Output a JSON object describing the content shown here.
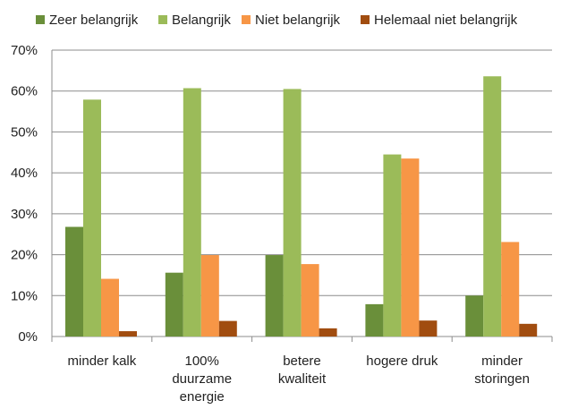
{
  "chart_data": {
    "type": "bar",
    "title": "",
    "xlabel": "",
    "ylabel": "",
    "ylim": [
      0,
      70
    ],
    "yticks": [
      "0%",
      "10%",
      "20%",
      "30%",
      "40%",
      "50%",
      "60%",
      "70%"
    ],
    "grid": true,
    "legend_position": "top",
    "categories": [
      [
        "minder kalk"
      ],
      [
        "100%",
        "duurzame",
        "energie"
      ],
      [
        "betere",
        "kwaliteit"
      ],
      [
        "hogere druk"
      ],
      [
        "minder",
        "storingen"
      ]
    ],
    "series": [
      {
        "name": "Zeer belangrijk",
        "color": "#6a8f3a",
        "values": [
          26.8,
          15.6,
          19.9,
          7.9,
          10.0
        ]
      },
      {
        "name": "Belangrijk",
        "color": "#9bbb59",
        "values": [
          57.9,
          60.7,
          60.5,
          44.5,
          63.6
        ]
      },
      {
        "name": "Niet belangrijk",
        "color": "#f79646",
        "values": [
          14.1,
          19.9,
          17.7,
          43.5,
          23.1
        ]
      },
      {
        "name": "Helemaal niet belangrijk",
        "color": "#a14d10",
        "values": [
          1.3,
          3.8,
          2.0,
          3.9,
          3.1
        ]
      }
    ]
  }
}
